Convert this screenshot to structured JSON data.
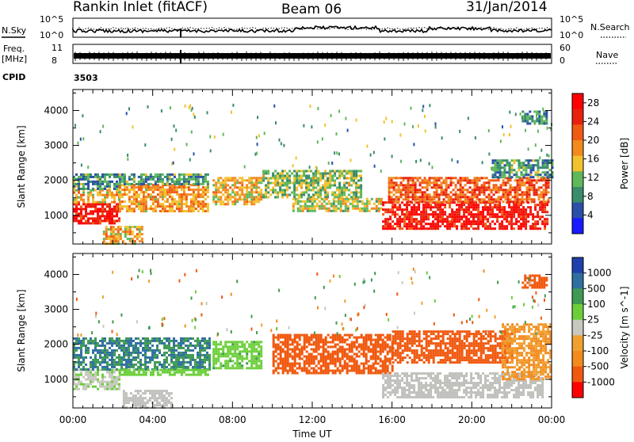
{
  "header": {
    "radar": "Rankin Inlet (fitACF)",
    "beam": "Beam 06",
    "date": "31/Jan/2014"
  },
  "top_panel": {
    "left_label": "N.Sky",
    "right_label": "N.Search",
    "left_ticks": [
      "10^5",
      "10^0"
    ],
    "right_ticks": [
      "10^5",
      "10^0"
    ]
  },
  "freq_panel": {
    "left_label_1": "Freq.",
    "left_label_2": "[MHz]",
    "right_label": "Nave",
    "left_ticks": [
      "11",
      "8"
    ],
    "right_ticks": [
      "60",
      "0"
    ]
  },
  "cpid": {
    "label": "CPID",
    "value": "3503"
  },
  "colors": {
    "power_scale": [
      "#1a1aff",
      "#2b4fa8",
      "#3a8c6a",
      "#5fb85a",
      "#f2c12e",
      "#f28a1e",
      "#f05a12",
      "#e8210e",
      "#ff0000"
    ],
    "velocity_scale": [
      "#ff0000",
      "#f0580e",
      "#f28a1e",
      "#f0a030",
      "#c8c8c0",
      "#6ccf3a",
      "#3e9a52",
      "#2f6fa0",
      "#1f3faa"
    ],
    "ground_scatter": "#c0c0bc"
  },
  "chart_data": [
    {
      "type": "heatmap",
      "title": "",
      "xlabel": "Time UT",
      "ylabel": "Slant Range [km]",
      "x_ticks": [
        "00:00",
        "04:00",
        "08:00",
        "12:00",
        "16:00",
        "20:00",
        "00:00"
      ],
      "y_ticks": [
        "1000",
        "2000",
        "3000",
        "4000"
      ],
      "xlim_hours": [
        0,
        24
      ],
      "ylim_km": [
        180,
        4600
      ],
      "colorbar": {
        "label": "Power [dB]",
        "ticks": [
          "4",
          "8",
          "12",
          "16",
          "20",
          "24",
          "28"
        ],
        "range": [
          0,
          30
        ]
      },
      "regions": [
        {
          "t0": 0.0,
          "t1": 2.3,
          "r0": 750,
          "r1": 1350,
          "value": 27
        },
        {
          "t0": 0.0,
          "t1": 2.3,
          "r0": 1350,
          "r1": 1750,
          "value": 16
        },
        {
          "t0": 0.0,
          "t1": 2.3,
          "r0": 1750,
          "r1": 2200,
          "value": 9
        },
        {
          "t0": 2.3,
          "t1": 6.8,
          "r0": 1150,
          "r1": 1900,
          "value": 18
        },
        {
          "t0": 2.3,
          "t1": 6.8,
          "r0": 1900,
          "r1": 2200,
          "value": 9
        },
        {
          "t0": 7.0,
          "t1": 9.5,
          "r0": 1300,
          "r1": 2100,
          "value": 16
        },
        {
          "t0": 9.5,
          "t1": 14.5,
          "r0": 1500,
          "r1": 2300,
          "value": 12
        },
        {
          "t0": 11.0,
          "t1": 15.5,
          "r0": 1100,
          "r1": 1500,
          "value": 14
        },
        {
          "t0": 15.5,
          "t1": 23.8,
          "r0": 600,
          "r1": 1400,
          "value": 27
        },
        {
          "t0": 15.8,
          "t1": 23.8,
          "r0": 1400,
          "r1": 2100,
          "value": 22
        },
        {
          "t0": 21.0,
          "t1": 24.0,
          "r0": 2100,
          "r1": 2600,
          "value": 9
        },
        {
          "t0": 22.5,
          "t1": 23.8,
          "r0": 3600,
          "r1": 4000,
          "value": 8
        },
        {
          "t0": 1.5,
          "t1": 3.5,
          "r0": 220,
          "r1": 700,
          "value": 16
        }
      ]
    },
    {
      "type": "heatmap",
      "title": "",
      "xlabel": "Time UT",
      "ylabel": "Slant Range [km]",
      "x_ticks": [
        "00:00",
        "04:00",
        "08:00",
        "12:00",
        "16:00",
        "20:00",
        "00:00"
      ],
      "y_ticks": [
        "1000",
        "2000",
        "3000",
        "4000"
      ],
      "xlim_hours": [
        0,
        24
      ],
      "ylim_km": [
        180,
        4600
      ],
      "colorbar": {
        "label": "Velocity [m s^-1]",
        "ticks": [
          "1000",
          "500",
          "100",
          "25",
          "-25",
          "-100",
          "-500",
          "-1000"
        ]
      },
      "regions": [
        {
          "t0": 0.0,
          "t1": 2.3,
          "r0": 750,
          "r1": 1300,
          "value": 20
        },
        {
          "t0": 0.0,
          "t1": 6.8,
          "r0": 1300,
          "r1": 2200,
          "value": 300
        },
        {
          "t0": 2.3,
          "t1": 6.8,
          "r0": 1100,
          "r1": 1300,
          "value": 60
        },
        {
          "t0": 7.0,
          "t1": 9.5,
          "r0": 1300,
          "r1": 2100,
          "value": 80
        },
        {
          "t0": 10.0,
          "t1": 16.0,
          "r0": 1200,
          "r1": 2300,
          "value": -300
        },
        {
          "t0": 16.0,
          "t1": 22.0,
          "r0": 1500,
          "r1": 2400,
          "value": -300
        },
        {
          "t0": 15.5,
          "t1": 23.5,
          "r0": 500,
          "r1": 1200,
          "value": 0
        },
        {
          "t0": 21.5,
          "t1": 24.0,
          "r0": 1000,
          "r1": 2600,
          "value": -60
        },
        {
          "t0": 22.5,
          "t1": 23.8,
          "r0": 3600,
          "r1": 4000,
          "value": -300
        },
        {
          "t0": 2.5,
          "t1": 5.0,
          "r0": 220,
          "r1": 700,
          "value": 0
        }
      ]
    }
  ]
}
